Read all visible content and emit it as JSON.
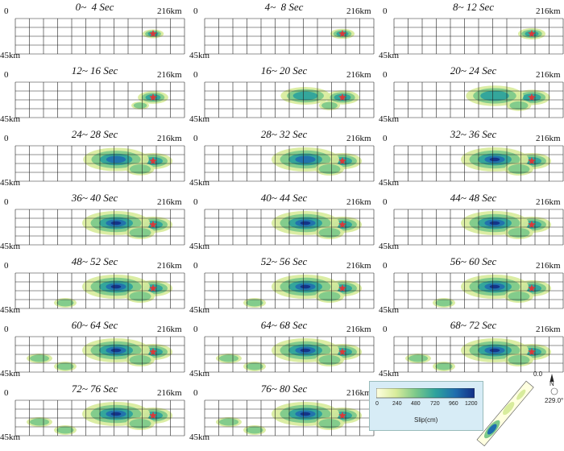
{
  "panels": [
    {
      "title": "0~  4 Sec"
    },
    {
      "title": "4~  8 Sec"
    },
    {
      "title": "8~ 12 Sec"
    },
    {
      "title": "12~ 16 Sec"
    },
    {
      "title": "16~ 20 Sec"
    },
    {
      "title": "20~ 24 Sec"
    },
    {
      "title": "24~ 28 Sec"
    },
    {
      "title": "28~ 32 Sec"
    },
    {
      "title": "32~ 36 Sec"
    },
    {
      "title": "36~ 40 Sec"
    },
    {
      "title": "40~ 44 Sec"
    },
    {
      "title": "44~ 48 Sec"
    },
    {
      "title": "48~ 52 Sec"
    },
    {
      "title": "52~ 56 Sec"
    },
    {
      "title": "56~ 60 Sec"
    },
    {
      "title": "60~ 64 Sec"
    },
    {
      "title": "64~ 68 Sec"
    },
    {
      "title": "68~ 72 Sec"
    },
    {
      "title": "72~ 76 Sec"
    },
    {
      "title": "76~ 80 Sec"
    }
  ],
  "axis": {
    "left": "0",
    "right": "216km",
    "depth": "45km"
  },
  "legend": {
    "title": "Slip(cm)",
    "ticks": [
      "0",
      "240",
      "480",
      "720",
      "960",
      "1200"
    ],
    "colors": [
      "#ffffe0",
      "#d8ec9c",
      "#7cc98a",
      "#2ea39c",
      "#1f6fae",
      "#132f86"
    ]
  },
  "fault_view": {
    "north": "N",
    "strike": "229.0°",
    "dip_label": "0.0"
  },
  "hypocenter_color": "#d93a3a"
}
